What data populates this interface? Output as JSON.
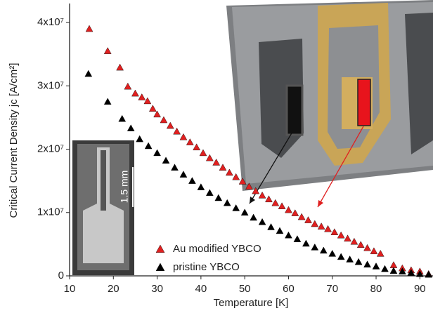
{
  "chart_data": {
    "type": "scatter",
    "xlabel": "Temperature [K]",
    "ylabel": "Critical Current Density jc [A/cm²]",
    "xlim": [
      10,
      93
    ],
    "ylim": [
      0,
      43000000.0
    ],
    "xticks": [
      10,
      20,
      30,
      40,
      50,
      60,
      70,
      80,
      90
    ],
    "yticks": [
      0,
      {
        "value": 10000000.0,
        "label": "1x10⁷"
      },
      {
        "value": 20000000.0,
        "label": "2x10⁷"
      },
      {
        "value": 30000000.0,
        "label": "3x10⁷"
      },
      {
        "value": 40000000.0,
        "label": "4x10⁷"
      }
    ],
    "legend": "lower-center",
    "annotations": [
      "1.5 mm"
    ],
    "series": [
      {
        "name": "Au modified YBCO",
        "color": "#e02020",
        "x": [
          14.5,
          18.7,
          21.5,
          23.3,
          25,
          26.5,
          27.8,
          29,
          30,
          31.5,
          33,
          34.5,
          36,
          37.5,
          39,
          40.5,
          42,
          43.5,
          45,
          46.5,
          48,
          49.5,
          51,
          52.5,
          54,
          55.5,
          57,
          58.5,
          60,
          61.5,
          63,
          64.5,
          66,
          67.5,
          69,
          70.5,
          72,
          73.5,
          75,
          76.5,
          78,
          79.5,
          81,
          84,
          86,
          88,
          90,
          92
        ],
        "values": [
          39000000.0,
          35500000.0,
          32900000.0,
          29900000.0,
          28800000.0,
          28200000.0,
          27600000.0,
          26400000.0,
          25500000.0,
          24600000.0,
          23700000.0,
          22800000.0,
          21900000.0,
          21100000.0,
          20300000.0,
          19400000.0,
          18600000.0,
          17900000.0,
          17100000.0,
          16300000.0,
          15600000.0,
          14900000.0,
          14100000.0,
          13400000.0,
          12700000.0,
          12100000.0,
          11500000.0,
          11000000.0,
          10400000.0,
          9900000.0,
          9300000.0,
          8800000.0,
          8200000.0,
          7800000.0,
          7400000.0,
          6900000.0,
          6400000.0,
          5900000.0,
          5400000.0,
          4900000.0,
          4400000.0,
          3900000.0,
          3500000.0,
          1700000.0,
          1200000.0,
          900000.0,
          700000.0,
          300000.0
        ]
      },
      {
        "name": "pristine YBCO",
        "color": "#000000",
        "x": [
          14.3,
          18.7,
          22,
          24,
          26,
          28,
          30,
          32,
          34,
          36,
          38,
          40,
          42,
          44,
          46,
          48,
          50,
          52,
          54,
          56,
          58,
          60,
          62,
          64,
          66,
          68,
          70,
          72,
          74,
          76,
          78,
          80,
          82,
          84,
          86,
          88,
          90,
          92
        ],
        "values": [
          31900000.0,
          27500000.0,
          24800000.0,
          23300000.0,
          21600000.0,
          20500000.0,
          19400000.0,
          18200000.0,
          17100000.0,
          16000000.0,
          15000000.0,
          14000000.0,
          13100000.0,
          12300000.0,
          11500000.0,
          10700000.0,
          10000000.0,
          9200000.0,
          8500000.0,
          7700000.0,
          7100000.0,
          6400000.0,
          5800000.0,
          5100000.0,
          4500000.0,
          4000000.0,
          3500000.0,
          3000000.0,
          2600000.0,
          2200000.0,
          1800000.0,
          1500000.0,
          1100000.0,
          800000.0,
          700000.0,
          500000.0,
          300000.0,
          200000.0
        ]
      }
    ]
  }
}
